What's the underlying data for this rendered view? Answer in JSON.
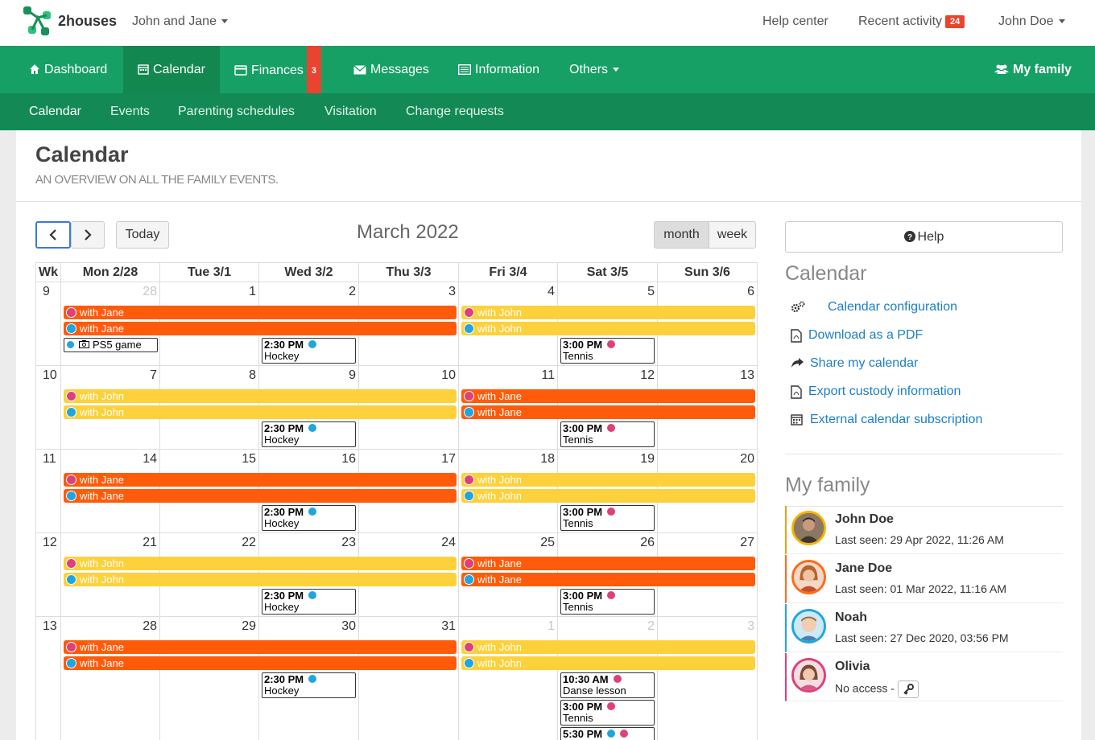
{
  "brand": {
    "name": "2houses",
    "family_select": "John and Jane"
  },
  "top_links": {
    "help": "Help center",
    "recent": "Recent activity",
    "recent_count": "24",
    "user": "John Doe"
  },
  "main_nav": {
    "dashboard": "Dashboard",
    "calendar": "Calendar",
    "finances": "Finances",
    "finances_count": "3",
    "messages": "Messages",
    "information": "Information",
    "others": "Others",
    "my_family": "My family"
  },
  "sub_nav": [
    "Calendar",
    "Events",
    "Parenting schedules",
    "Visitation",
    "Change requests"
  ],
  "page": {
    "title": "Calendar",
    "subtitle": "AN OVERVIEW ON ALL THE FAMILY EVENTS."
  },
  "toolbar": {
    "today": "Today",
    "month_title": "March 2022",
    "view_month": "month",
    "view_week": "week"
  },
  "day_headers": [
    "Wk",
    "Mon 2/28",
    "Tue 3/1",
    "Wed 3/2",
    "Thu 3/3",
    "Fri 3/4",
    "Sat 3/5",
    "Sun 3/6"
  ],
  "weeks": [
    {
      "wk": "9",
      "days": [
        "28",
        "1",
        "2",
        "3",
        "4",
        "5",
        "6"
      ],
      "other": [
        0
      ]
    },
    {
      "wk": "10",
      "days": [
        "7",
        "8",
        "9",
        "10",
        "11",
        "12",
        "13"
      ],
      "other": []
    },
    {
      "wk": "11",
      "days": [
        "14",
        "15",
        "16",
        "17",
        "18",
        "19",
        "20"
      ],
      "other": []
    },
    {
      "wk": "12",
      "days": [
        "21",
        "22",
        "23",
        "24",
        "25",
        "26",
        "27"
      ],
      "other": []
    },
    {
      "wk": "13",
      "days": [
        "28",
        "29",
        "30",
        "31",
        "1",
        "2",
        "3"
      ],
      "other": [
        4,
        5,
        6
      ]
    }
  ],
  "events": {
    "with_jane": "with Jane",
    "with_john": "with John",
    "ps5": "PS5 game",
    "hockey_time": "2:30 PM",
    "hockey": "Hockey",
    "tennis_time": "3:00 PM",
    "tennis": "Tennis",
    "danse_time": "10:30 AM",
    "danse": "Danse lesson",
    "late_time": "5:30 PM"
  },
  "colors": {
    "orange": "#ff5b0a",
    "yellow": "#fdd13c",
    "pink": "#e0407a",
    "blue": "#1fa6e0",
    "green": "#16a065"
  },
  "sidebar": {
    "help": "Help",
    "calendar_heading": "Calendar",
    "links": [
      "Calendar configuration",
      "Download as a PDF",
      "Share my calendar",
      "Export custody information",
      "External calendar subscription"
    ],
    "family_heading": "My family",
    "members": [
      {
        "name": "John Doe",
        "seen": "Last seen: 29 Apr 2022, 11:26 AM"
      },
      {
        "name": "Jane Doe",
        "seen": "Last seen: 01 Mar 2022, 11:16 AM"
      },
      {
        "name": "Noah",
        "seen": "Last seen: 27 Dec 2020, 03:56 PM"
      },
      {
        "name": "Olivia",
        "seen": "No access -"
      }
    ]
  }
}
